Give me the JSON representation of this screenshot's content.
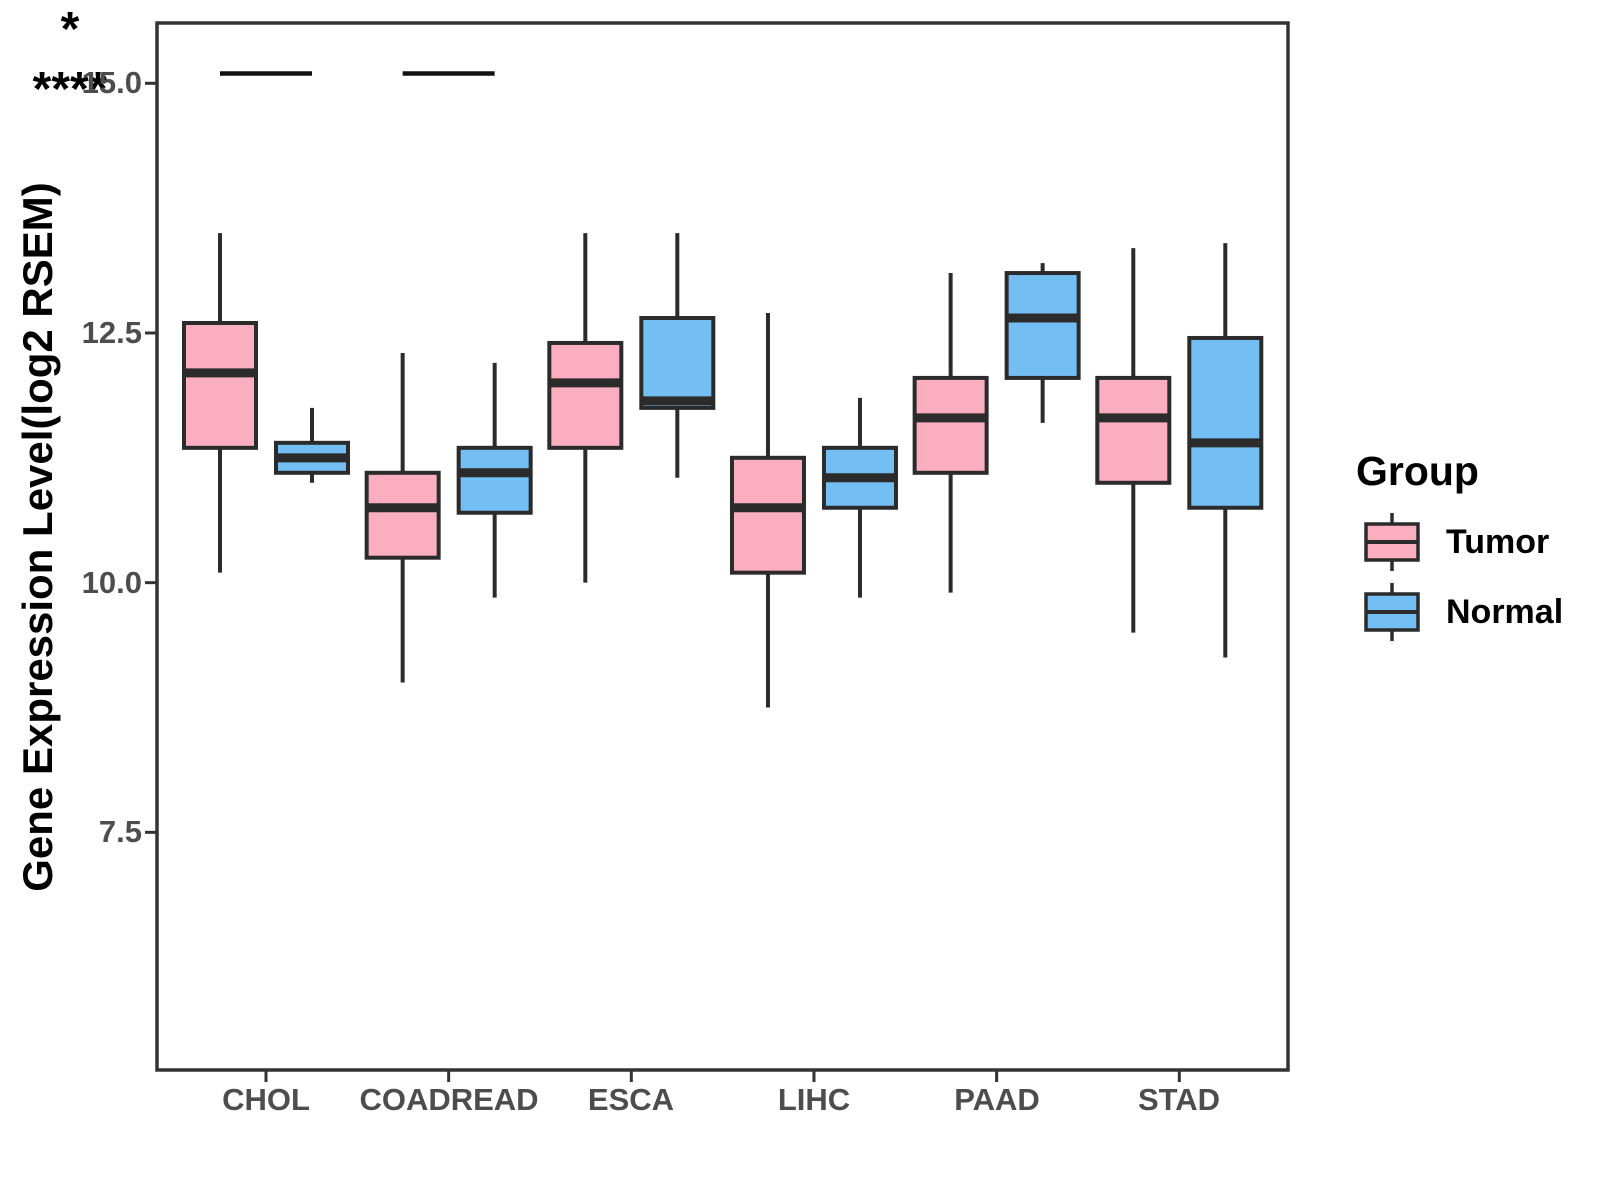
{
  "chart_data": {
    "type": "boxplot",
    "title": "",
    "xlabel": "",
    "ylabel": "Gene Expression Level(log2 RSEM)",
    "ylim": [
      5.1,
      15.6
    ],
    "y_ticks": [
      "15.0",
      "12.5",
      "10.0",
      "7.5"
    ],
    "grid": "off",
    "categories": [
      "CHOL",
      "COADREAD",
      "ESCA",
      "LIHC",
      "PAAD",
      "STAD"
    ],
    "series": [
      {
        "name": "Tumor",
        "color": "#FBAEC0",
        "boxes": [
          {
            "whisker_low": 10.1,
            "q1": 11.35,
            "median": 12.1,
            "q3": 12.6,
            "whisker_high": 13.5
          },
          {
            "whisker_low": 9.0,
            "q1": 10.25,
            "median": 10.75,
            "q3": 11.1,
            "whisker_high": 12.3
          },
          {
            "whisker_low": 10.0,
            "q1": 11.35,
            "median": 12.0,
            "q3": 12.4,
            "whisker_high": 13.5
          },
          {
            "whisker_low": 8.75,
            "q1": 10.1,
            "median": 10.75,
            "q3": 11.25,
            "whisker_high": 12.7
          },
          {
            "whisker_low": 9.9,
            "q1": 11.1,
            "median": 11.65,
            "q3": 12.05,
            "whisker_high": 13.1
          },
          {
            "whisker_low": 9.5,
            "q1": 11.0,
            "median": 11.65,
            "q3": 12.05,
            "whisker_high": 13.35
          }
        ]
      },
      {
        "name": "Normal",
        "color": "#73BFF4",
        "boxes": [
          {
            "whisker_low": 11.0,
            "q1": 11.1,
            "median": 11.25,
            "q3": 11.4,
            "whisker_high": 11.75
          },
          {
            "whisker_low": 9.85,
            "q1": 10.7,
            "median": 11.1,
            "q3": 11.35,
            "whisker_high": 12.2
          },
          {
            "whisker_low": 11.05,
            "q1": 11.75,
            "median": 11.82,
            "q3": 12.65,
            "whisker_high": 13.5
          },
          {
            "whisker_low": 9.85,
            "q1": 10.75,
            "median": 11.05,
            "q3": 11.35,
            "whisker_high": 11.85
          },
          {
            "whisker_low": 11.6,
            "q1": 12.05,
            "median": 12.65,
            "q3": 13.1,
            "whisker_high": 13.2
          },
          {
            "whisker_low": 9.25,
            "q1": 10.75,
            "median": 11.4,
            "q3": 12.45,
            "whisker_high": 13.4
          }
        ]
      }
    ],
    "significance": [
      {
        "category": "CHOL",
        "label": "*"
      },
      {
        "category": "COADREAD",
        "label": "****"
      }
    ],
    "legend": {
      "title": "Group",
      "position": "right"
    },
    "colors": {
      "box_outline": "#2b2b2b",
      "axis": "#333333",
      "tick_text": "#4d4d4d",
      "label_text": "#000000"
    }
  }
}
